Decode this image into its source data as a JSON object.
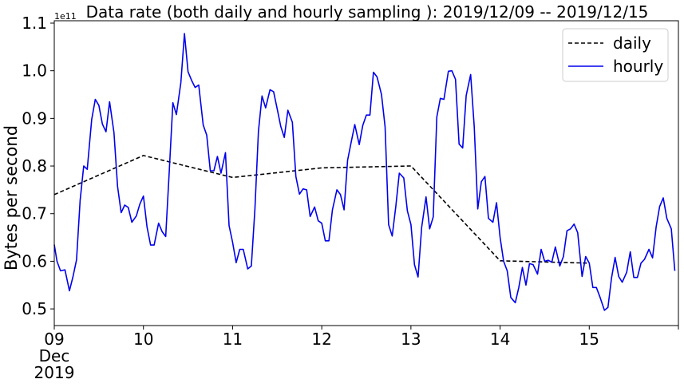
{
  "chart_data": {
    "type": "line",
    "title": "Data rate (both daily and hourly sampling ): 2019/12/09 -- 2019/12/15",
    "ylabel": "Bytes per second",
    "xlabel": "",
    "y_offset_label": "1e11",
    "ylim": [
      0.465,
      1.105
    ],
    "xlim": [
      9,
      16
    ],
    "x_ticks": [
      {
        "value": 9,
        "lines": [
          "09",
          "Dec",
          "2019"
        ]
      },
      {
        "value": 10,
        "lines": [
          "10"
        ]
      },
      {
        "value": 11,
        "lines": [
          "11"
        ]
      },
      {
        "value": 12,
        "lines": [
          "12"
        ]
      },
      {
        "value": 13,
        "lines": [
          "13"
        ]
      },
      {
        "value": 14,
        "lines": [
          "14"
        ]
      },
      {
        "value": 15,
        "lines": [
          "15"
        ]
      }
    ],
    "y_ticks": [
      {
        "value": 0.5,
        "label": "0.5"
      },
      {
        "value": 0.6,
        "label": "0.6"
      },
      {
        "value": 0.7,
        "label": "0.7"
      },
      {
        "value": 0.8,
        "label": "0.8"
      },
      {
        "value": 0.9,
        "label": "0.9"
      },
      {
        "value": 1.0,
        "label": "1.0"
      },
      {
        "value": 1.1,
        "label": "1.1"
      }
    ],
    "legend": {
      "placement": "upper-right"
    },
    "series": [
      {
        "name": "daily",
        "color": "#000000",
        "style": "dashed",
        "points": [
          [
            9,
            0.74
          ],
          [
            10,
            0.822
          ],
          [
            11,
            0.776
          ],
          [
            12,
            0.796
          ],
          [
            13,
            0.8
          ],
          [
            14,
            0.601
          ],
          [
            15,
            0.596
          ]
        ]
      },
      {
        "name": "hourly",
        "color": "#0000ee",
        "style": "solid",
        "points": [
          [
            9.0,
            0.635
          ],
          [
            9.03,
            0.6
          ],
          [
            9.07,
            0.58
          ],
          [
            9.12,
            0.582
          ],
          [
            9.17,
            0.538
          ],
          [
            9.21,
            0.568
          ],
          [
            9.25,
            0.603
          ],
          [
            9.29,
            0.728
          ],
          [
            9.33,
            0.8
          ],
          [
            9.37,
            0.793
          ],
          [
            9.42,
            0.898
          ],
          [
            9.46,
            0.94
          ],
          [
            9.5,
            0.927
          ],
          [
            9.54,
            0.888
          ],
          [
            9.58,
            0.872
          ],
          [
            9.62,
            0.935
          ],
          [
            9.67,
            0.87
          ],
          [
            9.71,
            0.757
          ],
          [
            9.75,
            0.702
          ],
          [
            9.79,
            0.718
          ],
          [
            9.83,
            0.713
          ],
          [
            9.87,
            0.682
          ],
          [
            9.92,
            0.695
          ],
          [
            9.96,
            0.72
          ],
          [
            10.0,
            0.737
          ],
          [
            10.04,
            0.672
          ],
          [
            10.08,
            0.634
          ],
          [
            10.12,
            0.634
          ],
          [
            10.17,
            0.68
          ],
          [
            10.21,
            0.662
          ],
          [
            10.25,
            0.652
          ],
          [
            10.29,
            0.79
          ],
          [
            10.33,
            0.933
          ],
          [
            10.37,
            0.908
          ],
          [
            10.42,
            0.975
          ],
          [
            10.46,
            1.078
          ],
          [
            10.5,
            0.998
          ],
          [
            10.54,
            0.98
          ],
          [
            10.58,
            0.965
          ],
          [
            10.62,
            0.97
          ],
          [
            10.67,
            0.886
          ],
          [
            10.71,
            0.865
          ],
          [
            10.75,
            0.79
          ],
          [
            10.79,
            0.79
          ],
          [
            10.83,
            0.82
          ],
          [
            10.87,
            0.785
          ],
          [
            10.92,
            0.828
          ],
          [
            10.96,
            0.675
          ],
          [
            11.0,
            0.64
          ],
          [
            11.04,
            0.597
          ],
          [
            11.08,
            0.625
          ],
          [
            11.12,
            0.625
          ],
          [
            11.17,
            0.584
          ],
          [
            11.21,
            0.59
          ],
          [
            11.25,
            0.71
          ],
          [
            11.29,
            0.873
          ],
          [
            11.33,
            0.947
          ],
          [
            11.37,
            0.922
          ],
          [
            11.42,
            0.96
          ],
          [
            11.46,
            0.956
          ],
          [
            11.5,
            0.92
          ],
          [
            11.54,
            0.883
          ],
          [
            11.58,
            0.86
          ],
          [
            11.62,
            0.917
          ],
          [
            11.67,
            0.892
          ],
          [
            11.71,
            0.778
          ],
          [
            11.75,
            0.741
          ],
          [
            11.79,
            0.752
          ],
          [
            11.83,
            0.75
          ],
          [
            11.87,
            0.694
          ],
          [
            11.92,
            0.714
          ],
          [
            11.96,
            0.685
          ],
          [
            12.0,
            0.68
          ],
          [
            12.04,
            0.643
          ],
          [
            12.08,
            0.643
          ],
          [
            12.12,
            0.708
          ],
          [
            12.17,
            0.75
          ],
          [
            12.21,
            0.74
          ],
          [
            12.25,
            0.708
          ],
          [
            12.29,
            0.812
          ],
          [
            12.33,
            0.85
          ],
          [
            12.37,
            0.887
          ],
          [
            12.42,
            0.845
          ],
          [
            12.46,
            0.885
          ],
          [
            12.5,
            0.907
          ],
          [
            12.54,
            0.907
          ],
          [
            12.58,
            0.997
          ],
          [
            12.62,
            0.987
          ],
          [
            12.67,
            0.95
          ],
          [
            12.71,
            0.882
          ],
          [
            12.75,
            0.677
          ],
          [
            12.79,
            0.653
          ],
          [
            12.83,
            0.715
          ],
          [
            12.87,
            0.785
          ],
          [
            12.92,
            0.775
          ],
          [
            12.96,
            0.706
          ],
          [
            13.0,
            0.677
          ],
          [
            13.04,
            0.593
          ],
          [
            13.08,
            0.567
          ],
          [
            13.12,
            0.671
          ],
          [
            13.17,
            0.735
          ],
          [
            13.21,
            0.668
          ],
          [
            13.25,
            0.693
          ],
          [
            13.29,
            0.903
          ],
          [
            13.33,
            0.942
          ],
          [
            13.37,
            0.94
          ],
          [
            13.42,
            0.999
          ],
          [
            13.46,
            1.0
          ],
          [
            13.5,
            0.982
          ],
          [
            13.54,
            0.846
          ],
          [
            13.58,
            0.838
          ],
          [
            13.62,
            0.948
          ],
          [
            13.67,
            0.992
          ],
          [
            13.71,
            0.882
          ],
          [
            13.75,
            0.71
          ],
          [
            13.79,
            0.767
          ],
          [
            13.83,
            0.778
          ],
          [
            13.87,
            0.69
          ],
          [
            13.92,
            0.682
          ],
          [
            13.96,
            0.723
          ],
          [
            14.0,
            0.65
          ],
          [
            14.04,
            0.6
          ],
          [
            14.08,
            0.58
          ],
          [
            14.12,
            0.524
          ],
          [
            14.17,
            0.513
          ],
          [
            14.21,
            0.545
          ],
          [
            14.25,
            0.587
          ],
          [
            14.29,
            0.55
          ],
          [
            14.33,
            0.595
          ],
          [
            14.37,
            0.593
          ],
          [
            14.42,
            0.573
          ],
          [
            14.46,
            0.625
          ],
          [
            14.5,
            0.6
          ],
          [
            14.54,
            0.602
          ],
          [
            14.58,
            0.598
          ],
          [
            14.62,
            0.63
          ],
          [
            14.67,
            0.59
          ],
          [
            14.71,
            0.61
          ],
          [
            14.75,
            0.664
          ],
          [
            14.79,
            0.668
          ],
          [
            14.83,
            0.678
          ],
          [
            14.87,
            0.66
          ],
          [
            14.92,
            0.568
          ],
          [
            14.96,
            0.61
          ],
          [
            15.0,
            0.596
          ],
          [
            15.04,
            0.545
          ],
          [
            15.08,
            0.545
          ],
          [
            15.12,
            0.525
          ],
          [
            15.17,
            0.497
          ],
          [
            15.21,
            0.503
          ],
          [
            15.25,
            0.565
          ],
          [
            15.29,
            0.608
          ],
          [
            15.33,
            0.568
          ],
          [
            15.37,
            0.556
          ],
          [
            15.42,
            0.577
          ],
          [
            15.46,
            0.62
          ],
          [
            15.5,
            0.566
          ],
          [
            15.54,
            0.566
          ],
          [
            15.58,
            0.596
          ],
          [
            15.62,
            0.604
          ],
          [
            15.67,
            0.625
          ],
          [
            15.71,
            0.607
          ],
          [
            15.75,
            0.672
          ],
          [
            15.79,
            0.715
          ],
          [
            15.83,
            0.733
          ],
          [
            15.87,
            0.69
          ],
          [
            15.92,
            0.668
          ],
          [
            15.96,
            0.58
          ]
        ]
      }
    ]
  }
}
